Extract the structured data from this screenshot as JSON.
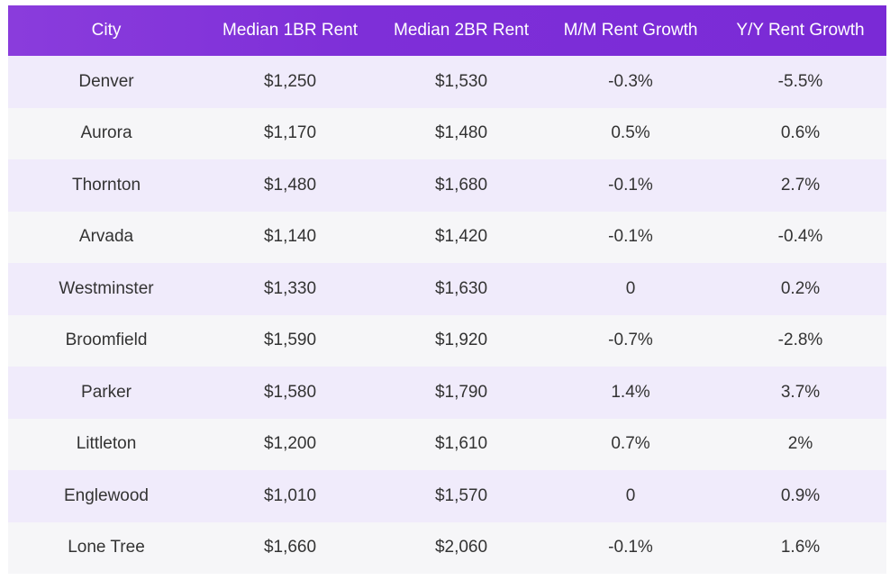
{
  "table": {
    "headers": [
      "City",
      "Median 1BR Rent",
      "Median 2BR Rent",
      "M/M Rent Growth",
      "Y/Y Rent Growth"
    ],
    "rows": [
      [
        "Denver",
        "$1,250",
        "$1,530",
        "-0.3%",
        "-5.5%"
      ],
      [
        "Aurora",
        "$1,170",
        "$1,480",
        "0.5%",
        "0.6%"
      ],
      [
        "Thornton",
        "$1,480",
        "$1,680",
        "-0.1%",
        "2.7%"
      ],
      [
        "Arvada",
        "$1,140",
        "$1,420",
        "-0.1%",
        "-0.4%"
      ],
      [
        "Westminster",
        "$1,330",
        "$1,630",
        "0",
        "0.2%"
      ],
      [
        "Broomfield",
        "$1,590",
        "$1,920",
        "-0.7%",
        "-2.8%"
      ],
      [
        "Parker",
        "$1,580",
        "$1,790",
        "1.4%",
        "3.7%"
      ],
      [
        "Littleton",
        "$1,200",
        "$1,610",
        "0.7%",
        "2%"
      ],
      [
        "Englewood",
        "$1,010",
        "$1,570",
        "0",
        "0.9%"
      ],
      [
        "Lone Tree",
        "$1,660",
        "$2,060",
        "-0.1%",
        "1.6%"
      ]
    ]
  },
  "colors": {
    "header_bg": "#7e2fd8",
    "header_text": "#ffffff",
    "row_odd": "#f0ebfb",
    "row_even": "#f6f6f8",
    "cell_text": "#333333"
  }
}
